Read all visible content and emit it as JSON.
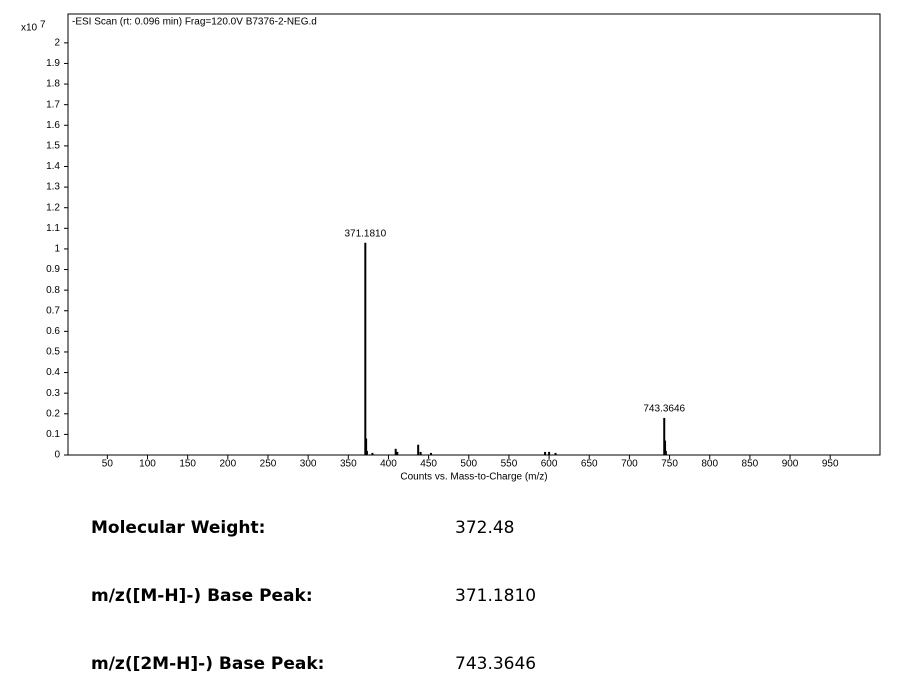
{
  "chart_data": {
    "type": "stem",
    "title": "-ESI Scan (rt: 0.096 min) Frag=120.0V B7376-2-NEG.d",
    "x_label": "Counts vs. Mass-to-Charge (m/z)",
    "y_scale_label": "x10",
    "y_scale_exponent": 7,
    "xlim": [
      1,
      1012
    ],
    "ylim": [
      0,
      2.14
    ],
    "xticks": [
      50,
      100,
      150,
      200,
      250,
      300,
      350,
      400,
      450,
      500,
      550,
      600,
      650,
      700,
      750,
      800,
      850,
      900,
      950
    ],
    "yticks": [
      0,
      0.1,
      0.2,
      0.3,
      0.4,
      0.5,
      0.6,
      0.7,
      0.8,
      0.9,
      1,
      1.1,
      1.2,
      1.3,
      1.4,
      1.5,
      1.6,
      1.7,
      1.8,
      1.9,
      2
    ],
    "color": "#000000",
    "series": [
      {
        "x": [
          371.181,
          372.18,
          373.18,
          380,
          409,
          411,
          437,
          440,
          453,
          595,
          600,
          608,
          743.3646,
          744.37,
          745.37
        ],
        "values": [
          1.03,
          0.08,
          0.02,
          0.01,
          0.03,
          0.015,
          0.05,
          0.015,
          0.01,
          0.015,
          0.015,
          0.01,
          0.18,
          0.07,
          0.02
        ],
        "labels": [
          "371.1810",
          null,
          null,
          null,
          null,
          null,
          null,
          null,
          null,
          null,
          null,
          null,
          "743.3646",
          null,
          null
        ]
      }
    ]
  },
  "details": {
    "rows": [
      [
        "Molecular Weight:",
        "372.48"
      ],
      [
        "m/z([M-H]-) Base Peak:",
        "371.1810"
      ],
      [
        "m/z([2M-H]-) Base Peak:",
        "743.3646"
      ]
    ]
  }
}
